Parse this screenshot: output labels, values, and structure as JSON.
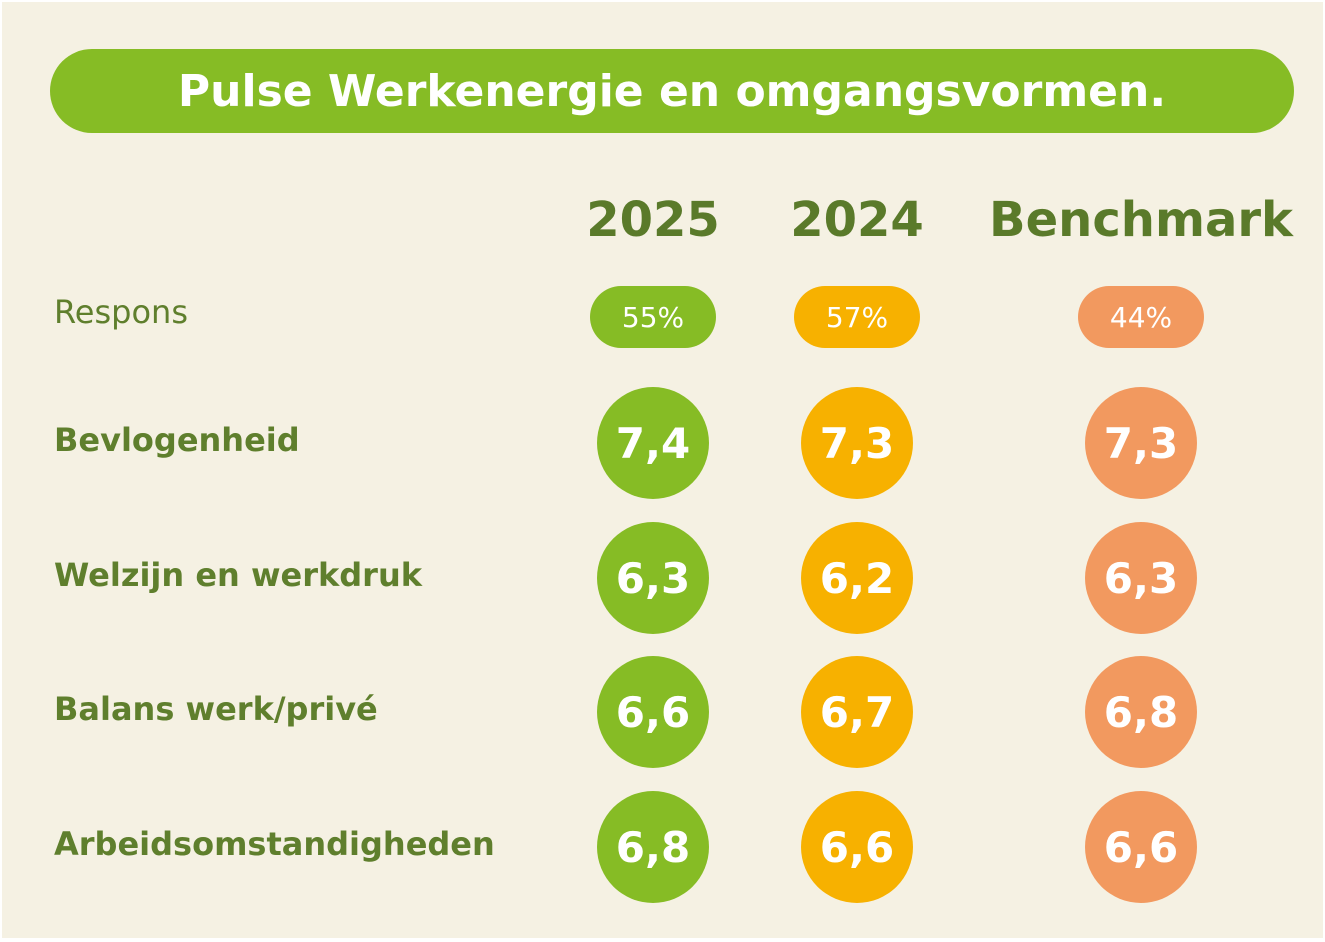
{
  "title": "Pulse Werkenergie en omgangsvormen.",
  "columns": [
    {
      "name": "2025",
      "color": "#86bc25"
    },
    {
      "name": "2024",
      "color": "#f7b100"
    },
    {
      "name": "Benchmark",
      "color": "#f2995f"
    }
  ],
  "response": {
    "label": "Respons",
    "values": [
      "55%",
      "57%",
      "44%"
    ]
  },
  "rows": [
    {
      "label": "Bevlogenheid",
      "values": [
        "7,4",
        "7,3",
        "7,3"
      ]
    },
    {
      "label": "Welzijn en werkdruk",
      "values": [
        "6,3",
        "6,2",
        "6,3"
      ]
    },
    {
      "label": "Balans werk/privé",
      "values": [
        "6,6",
        "6,7",
        "6,8"
      ]
    },
    {
      "label": "Arbeidsomstandigheden",
      "values": [
        "6,8",
        "6,6",
        "6,6"
      ]
    }
  ]
}
